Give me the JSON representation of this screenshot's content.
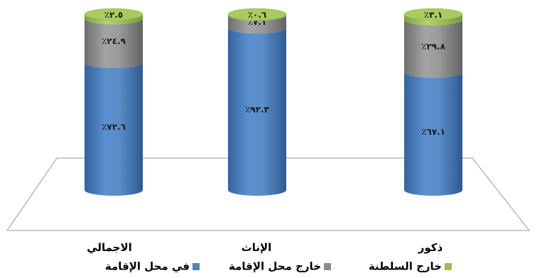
{
  "colors": {
    "in_residence": "#4f81bd",
    "outside_residence": "#8c8c8c",
    "outside_sultanate": "#9bbb59"
  },
  "chart_data": {
    "type": "bar",
    "stacked": true,
    "shape": "cylinder",
    "categories": [
      "ذكور",
      "الإناث",
      "الاجمالي"
    ],
    "series": [
      {
        "name": "في محل الإقامة",
        "color": "#4f81bd",
        "values": [
          67.1,
          92.3,
          72.6
        ],
        "labels": [
          "٪٦٧.١",
          "٪٩٢.٣",
          "٪٧٢.٦"
        ]
      },
      {
        "name": "خارج محل الإقامة",
        "color": "#8c8c8c",
        "values": [
          29.8,
          7.1,
          24.9
        ],
        "labels": [
          "٪٢٩.٨",
          "٪٧.١",
          "٪٢٤.٩"
        ]
      },
      {
        "name": "خارج السلطنة",
        "color": "#9bbb59",
        "values": [
          3.1,
          0.6,
          2.5
        ],
        "labels": [
          "٪٣.١",
          "٪٠.٦",
          "٪٢.٥"
        ]
      }
    ],
    "ylim": [
      0,
      100
    ],
    "legend_position": "bottom"
  }
}
